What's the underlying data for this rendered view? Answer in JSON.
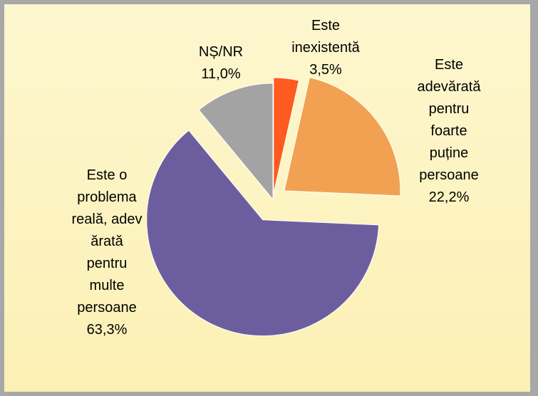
{
  "chart_data": {
    "type": "pie",
    "categories": [
      "Este\ninexistentă",
      "Este\nadevărată\npentru\nfoarte\npuține\npersoane",
      "Este o\nproblema\nreală, adev\nărată\npentru\nmulte\npersoane",
      "NȘ/NR"
    ],
    "values": [
      3.5,
      22.2,
      63.3,
      11.0
    ],
    "value_labels": [
      "3,5%",
      "22,2%",
      "63,3%",
      "11,0%"
    ],
    "colors": [
      "#ff5a1f",
      "#f2a152",
      "#6c5e9e",
      "#a3a3a3"
    ]
  }
}
